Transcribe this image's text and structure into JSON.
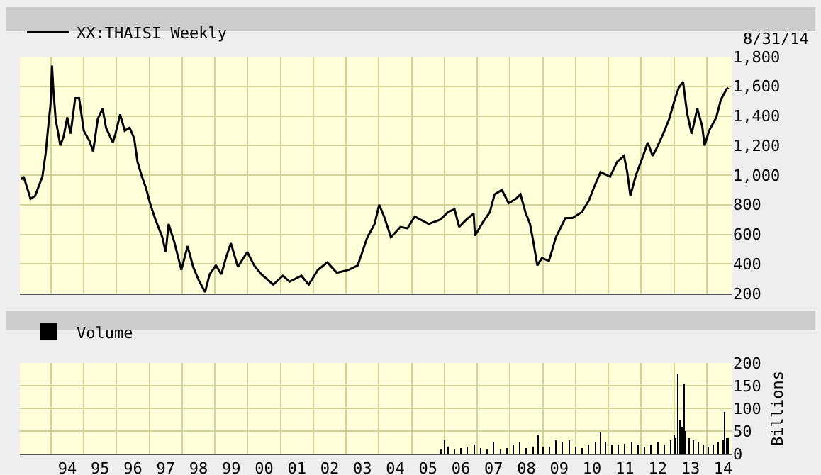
{
  "chart_data": [
    {
      "type": "line",
      "legend": "top left",
      "grid": true,
      "tick_labels": "y",
      "annotations": [
        "8/31/14"
      ],
      "xlim": [
        "1993-01-19",
        "2014-10-04"
      ],
      "xticks": [
        {
          "value": "1994-01-01",
          "label": null
        },
        {
          "value": "1995-01-01",
          "label": null
        },
        {
          "value": "1996-01-01",
          "label": null
        },
        {
          "value": "1997-01-01",
          "label": null
        },
        {
          "value": "1998-01-01",
          "label": null
        },
        {
          "value": "1999-01-01",
          "label": null
        },
        {
          "value": "2000-01-01",
          "label": null
        },
        {
          "value": "2001-01-01",
          "label": null
        },
        {
          "value": "2002-01-01",
          "label": null
        },
        {
          "value": "2003-01-01",
          "label": null
        },
        {
          "value": "2004-01-01",
          "label": null
        },
        {
          "value": "2005-01-01",
          "label": null
        },
        {
          "value": "2006-01-01",
          "label": null
        },
        {
          "value": "2007-01-01",
          "label": null
        },
        {
          "value": "2008-01-01",
          "label": null
        },
        {
          "value": "2009-01-01",
          "label": null
        },
        {
          "value": "2010-01-01",
          "label": null
        },
        {
          "value": "2011-01-01",
          "label": null
        },
        {
          "value": "2012-01-01",
          "label": null
        },
        {
          "value": "2013-01-01",
          "label": null
        },
        {
          "value": "2014-01-01",
          "label": null
        }
      ],
      "ylim": [
        200,
        1800
      ],
      "yticks": [
        200,
        400,
        600,
        800,
        {
          "value": 1000,
          "label": "1,000"
        },
        {
          "value": 1200,
          "label": "1,200"
        },
        {
          "value": 1400,
          "label": "1,400"
        },
        {
          "value": 1600,
          "label": "1,600"
        },
        {
          "value": 1800,
          "label": "1,800"
        }
      ],
      "x": [
        "1993-02-03",
        "1993-03-02",
        "1993-05-18",
        "1993-07-08",
        "1993-09-27",
        "1993-11-03",
        "1993-12-06",
        "1993-12-27",
        "1994-01-12",
        "1994-01-26",
        "1994-02-21",
        "1994-04-15",
        "1994-05-21",
        "1994-07-01",
        "1994-08-07",
        "1994-09-27",
        "1994-11-10",
        "1995-01-01",
        "1995-03-06",
        "1995-04-15",
        "1995-06-06",
        "1995-07-29",
        "1995-09-06",
        "1995-11-21",
        "1995-12-20",
        "1996-02-10",
        "1996-04-01",
        "1996-05-25",
        "1996-07-15",
        "1996-08-21",
        "1996-10-04",
        "1996-11-25",
        "1997-01-08",
        "1997-03-09",
        "1997-05-25",
        "1997-07-01",
        "1997-08-03",
        "1997-10-04",
        "1997-12-23",
        "1998-03-02",
        "1998-05-03",
        "1998-07-04",
        "1998-09-13",
        "1998-11-03",
        "1999-01-12",
        "1999-03-13",
        "1999-05-03",
        "1999-06-27",
        "1999-09-13",
        "1999-12-27",
        "2000-03-13",
        "2000-06-02",
        "2000-10-11",
        "2001-01-26",
        "2001-04-11",
        "2001-08-21",
        "2001-11-10",
        "2002-02-21",
        "2002-06-06",
        "2002-09-20",
        "2003-01-29",
        "2003-05-10",
        "2003-08-25",
        "2003-11-14",
        "2004-01-04",
        "2004-02-28",
        "2004-05-14",
        "2004-08-28",
        "2004-11-14",
        "2005-02-03",
        "2005-07-08",
        "2005-11-17",
        "2006-02-07",
        "2006-04-22",
        "2006-06-13",
        "2006-09-02",
        "2006-11-21",
        "2006-12-06",
        "2007-03-02",
        "2007-05-21",
        "2007-07-12",
        "2007-10-01",
        "2007-12-16",
        "2008-03-06",
        "2008-04-26",
        "2008-06-20",
        "2008-08-10",
        "2008-09-16",
        "2008-10-30",
        "2008-12-20",
        "2009-03-09",
        "2009-05-25",
        "2009-09-09",
        "2009-11-25",
        "2010-03-09",
        "2010-05-29",
        "2010-07-19",
        "2010-10-04",
        "2011-01-19",
        "2011-04-08",
        "2011-06-23",
        "2011-07-29",
        "2011-09-02",
        "2011-11-03",
        "2012-01-22",
        "2012-03-13",
        "2012-05-07",
        "2012-06-27",
        "2012-09-16",
        "2012-11-07",
        "2013-01-08",
        "2013-02-21",
        "2013-04-11",
        "2013-05-25",
        "2013-07-15",
        "2013-09-16",
        "2013-11-10",
        "2013-12-06",
        "2014-01-26",
        "2014-04-15",
        "2014-06-06",
        "2014-08-07",
        "2014-08-29"
      ],
      "series": [
        {
          "name": "XX:THAISI Weekly",
          "color": "#000000",
          "values": [
            970,
            990,
            840,
            860,
            990,
            1150,
            1360,
            1480,
            1740,
            1590,
            1380,
            1200,
            1260,
            1390,
            1280,
            1520,
            1520,
            1300,
            1230,
            1160,
            1380,
            1450,
            1320,
            1220,
            1280,
            1410,
            1300,
            1320,
            1250,
            1090,
            1000,
            910,
            810,
            700,
            580,
            480,
            670,
            550,
            360,
            520,
            380,
            290,
            210,
            330,
            390,
            330,
            440,
            540,
            380,
            480,
            390,
            330,
            260,
            320,
            280,
            320,
            260,
            360,
            410,
            340,
            360,
            390,
            580,
            670,
            800,
            720,
            580,
            650,
            640,
            720,
            670,
            700,
            750,
            770,
            650,
            700,
            740,
            590,
            680,
            750,
            870,
            900,
            810,
            840,
            870,
            750,
            670,
            550,
            390,
            440,
            420,
            580,
            710,
            710,
            750,
            830,
            910,
            1020,
            990,
            1090,
            1130,
            1020,
            860,
            1000,
            1130,
            1220,
            1130,
            1190,
            1300,
            1380,
            1510,
            1590,
            1630,
            1420,
            1280,
            1450,
            1330,
            1200,
            1300,
            1390,
            1510,
            1580,
            1590
          ]
        }
      ]
    },
    {
      "type": "bar",
      "legend": "top left",
      "grid": true,
      "ylabel": "Billions",
      "xlim": [
        "1993-01-19",
        "2014-10-04"
      ],
      "xticks": [
        {
          "value": "1994-01-01",
          "label": null
        },
        {
          "value": "1994-07-02",
          "label": "94"
        },
        {
          "value": "1995-01-01",
          "label": null
        },
        {
          "value": "1995-07-02",
          "label": "95"
        },
        {
          "value": "1996-01-01",
          "label": null
        },
        {
          "value": "1996-07-02",
          "label": "96"
        },
        {
          "value": "1997-01-01",
          "label": null
        },
        {
          "value": "1997-07-02",
          "label": "97"
        },
        {
          "value": "1998-01-01",
          "label": null
        },
        {
          "value": "1998-07-02",
          "label": "98"
        },
        {
          "value": "1999-01-01",
          "label": null
        },
        {
          "value": "1999-07-02",
          "label": "99"
        },
        {
          "value": "2000-01-01",
          "label": null
        },
        {
          "value": "2000-07-02",
          "label": "00"
        },
        {
          "value": "2001-01-01",
          "label": null
        },
        {
          "value": "2001-07-02",
          "label": "01"
        },
        {
          "value": "2002-01-01",
          "label": null
        },
        {
          "value": "2002-07-02",
          "label": "02"
        },
        {
          "value": "2003-01-01",
          "label": null
        },
        {
          "value": "2003-07-02",
          "label": "03"
        },
        {
          "value": "2004-01-01",
          "label": null
        },
        {
          "value": "2004-07-02",
          "label": "04"
        },
        {
          "value": "2005-01-01",
          "label": null
        },
        {
          "value": "2005-07-02",
          "label": "05"
        },
        {
          "value": "2006-01-01",
          "label": null
        },
        {
          "value": "2006-07-02",
          "label": "06"
        },
        {
          "value": "2007-01-01",
          "label": null
        },
        {
          "value": "2007-07-02",
          "label": "07"
        },
        {
          "value": "2008-01-01",
          "label": null
        },
        {
          "value": "2008-07-02",
          "label": "08"
        },
        {
          "value": "2009-01-01",
          "label": null
        },
        {
          "value": "2009-07-02",
          "label": "09"
        },
        {
          "value": "2010-01-01",
          "label": null
        },
        {
          "value": "2010-07-02",
          "label": "10"
        },
        {
          "value": "2011-01-01",
          "label": null
        },
        {
          "value": "2011-07-02",
          "label": "11"
        },
        {
          "value": "2012-01-01",
          "label": null
        },
        {
          "value": "2012-07-02",
          "label": "12"
        },
        {
          "value": "2013-01-01",
          "label": null
        },
        {
          "value": "2013-07-02",
          "label": "13"
        },
        {
          "value": "2014-01-01",
          "label": null
        },
        {
          "value": "2014-07-02",
          "label": "14"
        }
      ],
      "ylim": [
        0,
        200
      ],
      "yticks": [
        0,
        50,
        100,
        150,
        200
      ],
      "x": [
        "2005-11-25",
        "2006-01-01",
        "2006-02-07",
        "2006-04-19",
        "2006-07-01",
        "2006-09-13",
        "2006-11-25",
        "2007-02-07",
        "2007-04-19",
        "2007-07-01",
        "2007-09-13",
        "2007-11-25",
        "2008-02-07",
        "2008-04-19",
        "2008-07-01",
        "2008-09-13",
        "2008-11-07",
        "2009-01-01",
        "2009-03-13",
        "2009-05-25",
        "2009-08-07",
        "2009-10-19",
        "2010-01-01",
        "2010-03-13",
        "2010-05-25",
        "2010-08-07",
        "2010-10-01",
        "2010-11-25",
        "2011-02-07",
        "2011-04-19",
        "2011-07-01",
        "2011-09-13",
        "2011-11-25",
        "2012-02-07",
        "2012-04-19",
        "2012-07-01",
        "2012-09-13",
        "2012-11-25",
        "2013-01-01",
        "2013-01-19",
        "2013-02-14",
        "2013-03-06",
        "2013-04-01",
        "2013-04-19",
        "2013-05-07",
        "2013-06-13",
        "2013-08-07",
        "2013-10-01",
        "2013-11-25",
        "2014-01-19",
        "2014-03-13",
        "2014-05-07",
        "2014-07-01",
        "2014-07-19",
        "2014-08-07",
        "2014-08-25"
      ],
      "series": [
        {
          "name": "Volume",
          "color": "#000000",
          "values": [
            10,
            30,
            15,
            10,
            12,
            15,
            20,
            12,
            10,
            25,
            10,
            12,
            20,
            25,
            12,
            15,
            40,
            15,
            15,
            30,
            25,
            30,
            15,
            12,
            20,
            25,
            47,
            25,
            20,
            20,
            22,
            25,
            20,
            15,
            20,
            25,
            20,
            30,
            40,
            35,
            175,
            75,
            60,
            155,
            50,
            35,
            30,
            25,
            20,
            15,
            20,
            25,
            30,
            92,
            35,
            35
          ]
        }
      ]
    }
  ]
}
